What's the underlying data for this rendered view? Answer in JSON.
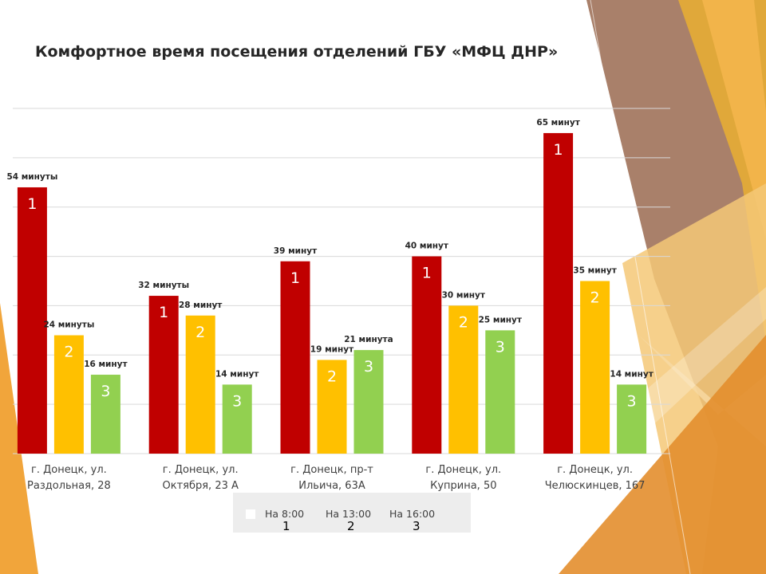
{
  "title": "Комфортное время посещения отделений ГБУ «МФЦ ДНР»",
  "colors": {
    "series1": "#c00000",
    "series2": "#ffc000",
    "series3": "#92d050",
    "grid": "#d9d9d9",
    "text": "#404040"
  },
  "chart_data": {
    "type": "bar",
    "categories": [
      [
        "г. Донецк, ул.",
        "Раздольная, 28"
      ],
      [
        "г. Донецк, ул.",
        "Октября, 23 А"
      ],
      [
        "г. Донецк, пр-т",
        "Ильича, 63А"
      ],
      [
        "г. Донецк, ул.",
        "Куприна, 50"
      ],
      [
        "г. Донецк, ул.",
        "Челюскинцев, 167"
      ]
    ],
    "series": [
      {
        "marker": "1",
        "values": [
          54,
          32,
          39,
          40,
          65
        ],
        "labels": [
          "54 минуты",
          "32 минуты",
          "39 минут",
          "40 минут",
          "65 минут"
        ]
      },
      {
        "marker": "2",
        "values": [
          24,
          28,
          19,
          30,
          35
        ],
        "labels": [
          "24 минуты",
          "28 минут",
          "19 минут",
          "30 минут",
          "35 минут"
        ]
      },
      {
        "marker": "3",
        "values": [
          16,
          14,
          21,
          25,
          14
        ],
        "labels": [
          "16 минут",
          "14 минут",
          "21 минута",
          "25 минут",
          "14 минут"
        ]
      }
    ],
    "ylim": [
      0,
      70
    ],
    "grid": true
  },
  "legend": {
    "items": [
      {
        "label": "На 8:00",
        "num": "1"
      },
      {
        "label": "На 13:00",
        "num": "2"
      },
      {
        "label": "На 16:00",
        "num": "3"
      }
    ]
  }
}
